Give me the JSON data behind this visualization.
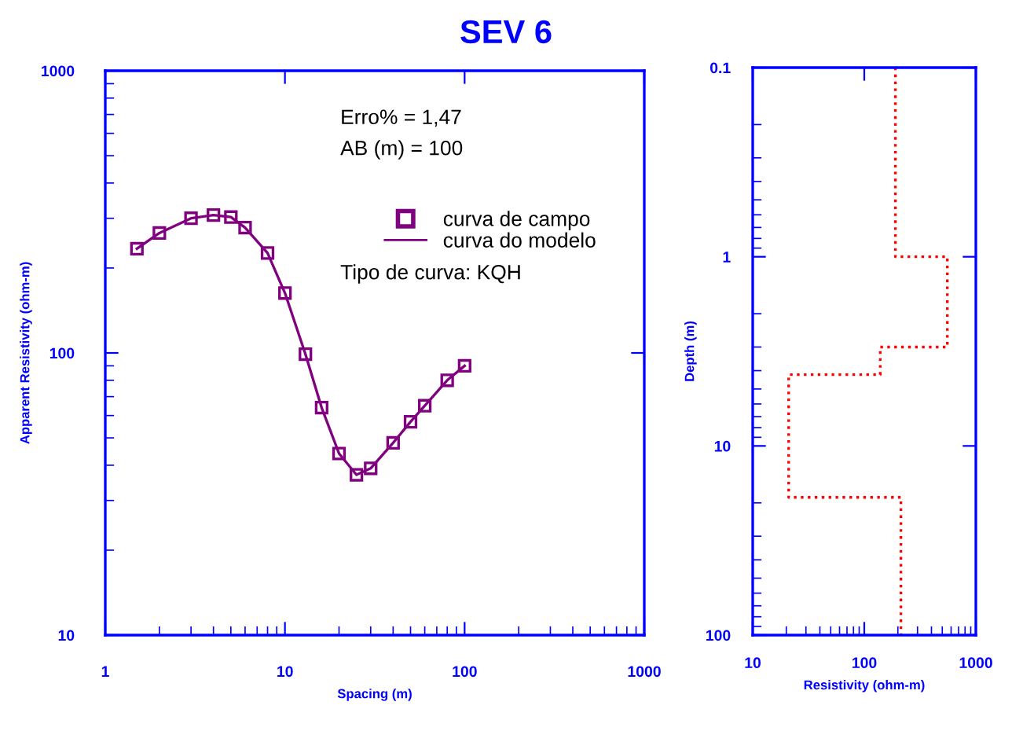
{
  "chart_data": [
    {
      "type": "line",
      "title": "SEV 6",
      "xlabel": "Spacing (m)",
      "ylabel": "Apparent Resistivity (ohm-m)",
      "log": "xy",
      "xlim": [
        1,
        1000
      ],
      "ylim": [
        10,
        1000
      ],
      "xticks": [
        1,
        10,
        100,
        1000
      ],
      "yticks": [
        10,
        100,
        1000
      ],
      "legend": "top right",
      "grid": false,
      "annotations": [
        "Erro% = 1,47",
        "AB (m) = 100",
        "Tipo de curva: KQH"
      ],
      "x": [
        1.5,
        2,
        3,
        4,
        5,
        6,
        8,
        10,
        13,
        16,
        20,
        25,
        30,
        40,
        50,
        60,
        80,
        100
      ],
      "series": [
        {
          "name": "curva de campo",
          "type": "scatter",
          "marker": "square",
          "color": "#800080",
          "values": [
            234,
            266,
            300,
            308,
            303,
            278,
            226,
            163,
            99,
            64,
            44,
            37,
            39,
            48,
            57,
            65,
            80,
            90
          ]
        },
        {
          "name": "curva do modelo",
          "type": "line",
          "color": "#800080",
          "values": [
            234,
            266,
            300,
            308,
            303,
            278,
            226,
            163,
            99,
            64,
            44,
            37,
            39,
            48,
            57,
            65,
            80,
            90
          ]
        }
      ]
    },
    {
      "type": "line",
      "xlabel": "Resistivity (ohm-m)",
      "ylabel": "Depth (m)",
      "log": "xy",
      "xlim": [
        10,
        1000
      ],
      "ylim": [
        100,
        0.1
      ],
      "xticks": [
        10,
        100,
        1000
      ],
      "yticks": [
        0.1,
        1,
        10,
        100
      ],
      "grid": false,
      "series": [
        {
          "color": "#ff0000",
          "line_style": "dotted",
          "x": [
            190,
            190,
            555,
            555,
            139,
            139,
            21,
            21,
            213,
            213
          ],
          "values": [
            0.1,
            1,
            1,
            3,
            3,
            4.2,
            4.2,
            18.7,
            18.7,
            100
          ]
        }
      ]
    }
  ]
}
